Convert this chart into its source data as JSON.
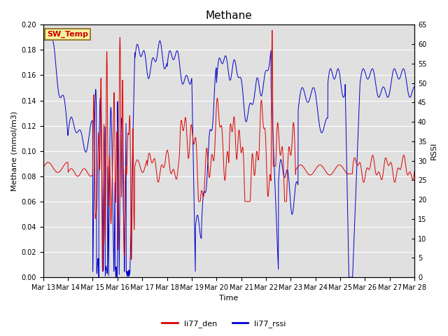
{
  "title": "Methane",
  "xlabel": "Time",
  "ylabel_left": "Methane (mmol/m3)",
  "ylabel_right": "RSSI",
  "annotation_text": "SW_Temp",
  "annotation_bg": "#f5f0a0",
  "annotation_border": "#8b6914",
  "annotation_text_color": "#cc0000",
  "ylim_left": [
    0.0,
    0.2
  ],
  "ylim_right": [
    0,
    65
  ],
  "yticks_left": [
    0.0,
    0.02,
    0.04,
    0.06,
    0.08,
    0.1,
    0.12,
    0.14,
    0.16,
    0.18,
    0.2
  ],
  "yticks_right": [
    0,
    5,
    10,
    15,
    20,
    25,
    30,
    35,
    40,
    45,
    50,
    55,
    60,
    65
  ],
  "xtick_labels": [
    "Mar 13",
    "Mar 14",
    "Mar 15",
    "Mar 16",
    "Mar 17",
    "Mar 18",
    "Mar 19",
    "Mar 20",
    "Mar 21",
    "Mar 22",
    "Mar 23",
    "Mar 24",
    "Mar 25",
    "Mar 26",
    "Mar 27",
    "Mar 28"
  ],
  "color_red": "#dd0000",
  "color_blue": "#0000cc",
  "background_color": "#e0e0e0",
  "grid_color": "#ffffff",
  "legend_labels": [
    "li77_den",
    "li77_rssi"
  ],
  "fig_bg": "#ffffff",
  "title_fontsize": 11,
  "axis_fontsize": 8,
  "tick_fontsize": 7
}
